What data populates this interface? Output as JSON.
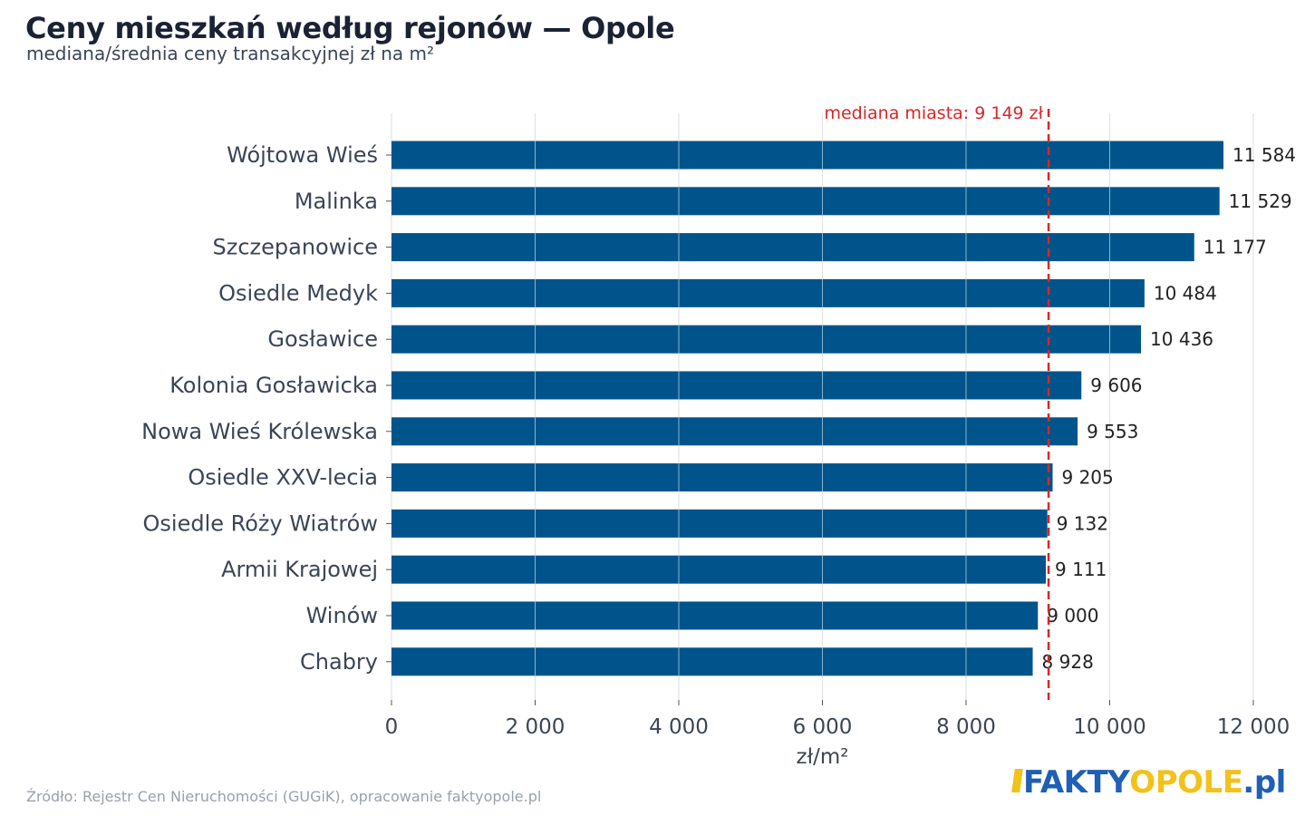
{
  "title": "Ceny mieszkań według rejonów — Opole",
  "subtitle": "mediana/średnia ceny transakcyjnej zł na m²",
  "source": "Źródło: Rejestr Cen Nieruchomości (GUGiK), opracowanie faktyopole.pl",
  "logo": {
    "part1": "FAKTY",
    "part2": "OPOLE",
    "part3": ".pl"
  },
  "colors": {
    "bar": "#00548c",
    "median": "#d62728",
    "grid": "#e3e3e3",
    "axis_text": "#3b4556"
  },
  "chart_data": {
    "type": "bar",
    "orientation": "horizontal",
    "categories": [
      "Wójtowa Wieś",
      "Malinka",
      "Szczepanowice",
      "Osiedle Medyk",
      "Gosławice",
      "Kolonia Gosławicka",
      "Nowa Wieś Królewska",
      "Osiedle XXV-lecia",
      "Osiedle Róży Wiatrów",
      "Armii Krajowej",
      "Winów",
      "Chabry"
    ],
    "values": [
      11584,
      11529,
      11177,
      10484,
      10436,
      9606,
      9553,
      9205,
      9132,
      9111,
      9000,
      8928
    ],
    "value_labels": [
      "11 584",
      "11 529",
      "11 177",
      "10 484",
      "10 436",
      "9 606",
      "9 553",
      "9 205",
      "9 132",
      "9 111",
      "9 000",
      "8 928"
    ],
    "xlabel": "zł/m²",
    "xlim": [
      0,
      12000
    ],
    "xticks": [
      0,
      2000,
      4000,
      6000,
      8000,
      10000,
      12000
    ],
    "xtick_labels": [
      "0",
      "2 000",
      "4 000",
      "6 000",
      "8 000",
      "10 000",
      "12 000"
    ],
    "grid": true,
    "reference_line": {
      "value": 9149,
      "label": "mediana miasta: 9 149 zł"
    }
  }
}
